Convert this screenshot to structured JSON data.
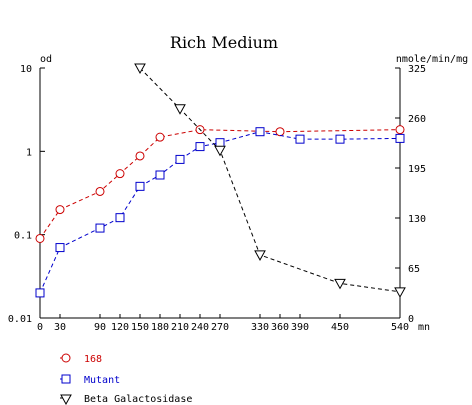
{
  "chart_data": {
    "type": "line",
    "title": "Rich Medium",
    "y_left_label": "od",
    "y_right_label": "nmole/min/mg",
    "x_unit_label": "mn",
    "x_ticks": [
      0,
      30,
      90,
      120,
      150,
      180,
      210,
      240,
      270,
      330,
      360,
      390,
      450,
      540
    ],
    "xlim": [
      0,
      540
    ],
    "y_left_ticks": [
      "10",
      "1",
      "0.1",
      "0.01"
    ],
    "y_left_scale": "log",
    "y_left_range": [
      0.01,
      10
    ],
    "y_right_ticks": [
      325,
      260,
      195,
      130,
      65,
      0
    ],
    "y_right_range": [
      0,
      325
    ],
    "legend_placement": "bottom-left",
    "series": [
      {
        "name": "168",
        "axis": "left",
        "color": "#cc0000",
        "marker": "circle",
        "x": [
          0,
          30,
          90,
          120,
          150,
          180,
          240,
          360,
          540
        ],
        "y": [
          0.09,
          0.2,
          0.33,
          0.54,
          0.88,
          1.48,
          1.82,
          1.72,
          1.82
        ]
      },
      {
        "name": "Mutant",
        "axis": "left",
        "color": "#0000cc",
        "marker": "square",
        "x": [
          0,
          30,
          90,
          120,
          150,
          180,
          210,
          240,
          270,
          330,
          390,
          450,
          540
        ],
        "y": [
          0.02,
          0.07,
          0.12,
          0.16,
          0.38,
          0.52,
          0.8,
          1.14,
          1.27,
          1.72,
          1.4,
          1.4,
          1.43
        ]
      },
      {
        "name": "Beta Galactosidase",
        "axis": "right",
        "color": "#000000",
        "marker": "triangle-down",
        "x": [
          150,
          210,
          270,
          330,
          450,
          540
        ],
        "y": [
          325,
          272,
          218,
          82,
          45,
          34
        ]
      }
    ]
  }
}
